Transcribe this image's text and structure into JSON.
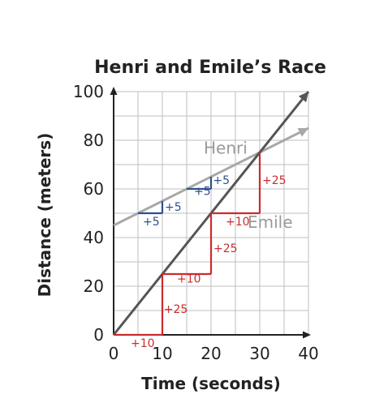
{
  "chart_data": {
    "type": "line",
    "title": "Henri and Emile’s Race",
    "xlabel": "Time (seconds)",
    "ylabel": "Distance (meters)",
    "xlim": [
      0,
      40
    ],
    "ylim": [
      0,
      100
    ],
    "grid": true,
    "x_ticks": [
      "0",
      "10",
      "20",
      "30",
      "40"
    ],
    "y_ticks": [
      "0",
      "20",
      "40",
      "60",
      "80",
      "100"
    ],
    "series": [
      {
        "name": "Henri",
        "color": "#a8a8a8",
        "points": [
          [
            0,
            45
          ],
          [
            40,
            85
          ]
        ]
      },
      {
        "name": "Emile",
        "color": "#555555",
        "points": [
          [
            0,
            0
          ],
          [
            40,
            100
          ]
        ]
      }
    ],
    "annotations": [
      {
        "label": "+5",
        "color": "#2f4f8f",
        "run": [
          5,
          10,
          50
        ],
        "rise": [
          10,
          50,
          55
        ],
        "run_label_at": [
          6,
          45
        ],
        "rise_label_at": [
          10.5,
          51
        ]
      },
      {
        "label": "+5",
        "color": "#2f4f8f",
        "run": [
          15,
          20,
          60
        ],
        "rise": [
          20,
          60,
          65
        ],
        "run_label_at": [
          16.5,
          57.5
        ],
        "rise_label_at": [
          20.4,
          62
        ]
      },
      {
        "label": "+10",
        "color": "#cc2b2b",
        "run": [
          0,
          10,
          0
        ],
        "run_label_at": [
          3.5,
          -5
        ]
      },
      {
        "label": "+25",
        "color": "#cc2b2b",
        "rise": [
          10,
          0,
          25
        ],
        "rise_label_at": [
          10.3,
          9
        ]
      },
      {
        "label": "+10",
        "color": "#cc2b2b",
        "run": [
          10,
          20,
          25
        ],
        "run_label_at": [
          13,
          21.5
        ]
      },
      {
        "label": "+25",
        "color": "#cc2b2b",
        "rise": [
          20,
          25,
          50
        ],
        "rise_label_at": [
          20.5,
          34
        ]
      },
      {
        "label": "+10",
        "color": "#cc2b2b",
        "run": [
          20,
          30,
          50
        ],
        "run_label_at": [
          23,
          45
        ]
      },
      {
        "label": "+25",
        "color": "#cc2b2b",
        "rise": [
          30,
          50,
          75
        ],
        "rise_label_at": [
          30.5,
          62
        ]
      }
    ]
  }
}
